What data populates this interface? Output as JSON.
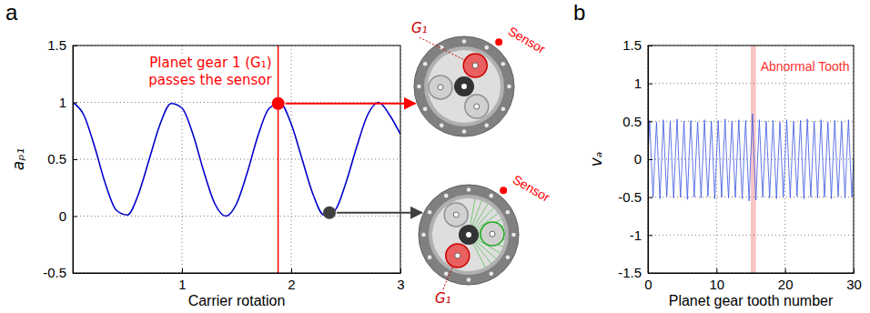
{
  "chart_data": [
    {
      "type": "line",
      "panel_label": "a",
      "xlabel": "Carrier rotation",
      "ylabel": "aₚ₁",
      "x": [
        0,
        0.1,
        0.2,
        0.3,
        0.4,
        0.5,
        0.6,
        0.7,
        0.8,
        0.9,
        1,
        1.1,
        1.2,
        1.3,
        1.4,
        1.5,
        1.6,
        1.7,
        1.8,
        1.9,
        2,
        2.1,
        2.2,
        2.3,
        2.4,
        2.5,
        2.6,
        2.7,
        2.8,
        2.9,
        3
      ],
      "values": [
        1,
        0.89,
        0.61,
        0.28,
        0.05,
        0.01,
        0.19,
        0.5,
        0.81,
        0.99,
        0.95,
        0.72,
        0.39,
        0.11,
        0,
        0.11,
        0.39,
        0.72,
        0.95,
        0.99,
        0.81,
        0.5,
        0.19,
        0.01,
        0.05,
        0.29,
        0.61,
        0.89,
        1,
        0.89,
        0.72
      ],
      "color": "#0000cc",
      "xlim": [
        0,
        3
      ],
      "xticks": [
        1,
        2,
        3
      ],
      "ylim": [
        -0.5,
        1.5
      ],
      "yticks": [
        -0.5,
        0,
        0.5,
        1,
        1.5
      ],
      "grid": true,
      "marker_line": {
        "x": 1.88,
        "color": "#ff0000"
      },
      "points": [
        {
          "x": 1.88,
          "y": 0.99,
          "color": "#ff0000"
        },
        {
          "x": 2.35,
          "y": 0.03,
          "color": "#404040"
        }
      ],
      "annotation": {
        "lines": [
          "Planet gear 1 (G₁)",
          "passes the sensor"
        ],
        "color": "#ff0000"
      },
      "diagrams": [
        {
          "sensor": "Sensor",
          "gear": "G₁"
        },
        {
          "sensor": "Sensor",
          "gear": "G₁"
        }
      ]
    },
    {
      "type": "line",
      "panel_label": "b",
      "xlabel": "Planet gear tooth number",
      "ylabel": "vₐ",
      "x": [
        0,
        0.25,
        0.5,
        0.75,
        1,
        1.25,
        1.5,
        1.75,
        2,
        2.25,
        2.5,
        2.75,
        3,
        3.25,
        3.5,
        3.75,
        4,
        4.25,
        4.5,
        4.75,
        5,
        5.25,
        5.5,
        5.75,
        6,
        6.25,
        6.5,
        6.75,
        7,
        7.25,
        7.5,
        7.75,
        8,
        8.25,
        8.5,
        8.75,
        9,
        9.25,
        9.5,
        9.75,
        10,
        10.25,
        10.5,
        10.75,
        11,
        11.25,
        11.5,
        11.75,
        12,
        12.25,
        12.5,
        12.75,
        13,
        13.25,
        13.5,
        13.75,
        14,
        14.25,
        14.5,
        14.75,
        15,
        15.25,
        15.5,
        15.75,
        16,
        16.25,
        16.5,
        16.75,
        17,
        17.25,
        17.5,
        17.75,
        18,
        18.25,
        18.5,
        18.75,
        19,
        19.25,
        19.5,
        19.75,
        20,
        20.25,
        20.5,
        20.75,
        21,
        21.25,
        21.5,
        21.75,
        22,
        22.25,
        22.5,
        22.75,
        23,
        23.25,
        23.5,
        23.75,
        24,
        24.25,
        24.5,
        24.75,
        25,
        25.25,
        25.5,
        25.75,
        26,
        26.25,
        26.5,
        26.75,
        27,
        27.25,
        27.5,
        27.75,
        28,
        28.25,
        28.5,
        28.75,
        29,
        29.25,
        29.5,
        29.75,
        30
      ],
      "values": [
        0.02,
        0.51,
        -0.04,
        -0.5,
        0.03,
        0.49,
        -0.02,
        -0.52,
        0.01,
        0.52,
        -0.03,
        -0.49,
        0.04,
        0.5,
        -0.05,
        -0.51,
        0.02,
        0.53,
        -0.02,
        -0.5,
        0,
        0.5,
        -0.04,
        -0.53,
        0.03,
        0.51,
        -0.01,
        -0.5,
        0.02,
        0.49,
        -0.03,
        -0.51,
        0.01,
        0.52,
        -0.04,
        -0.49,
        0.03,
        0.5,
        -0.02,
        -0.52,
        0.02,
        0.51,
        -0.03,
        -0.5,
        0.04,
        0.53,
        -0.05,
        -0.51,
        0.01,
        0.5,
        -0.02,
        -0.5,
        0.03,
        0.52,
        -0.04,
        -0.52,
        0.02,
        0.51,
        -0.03,
        -0.55,
        0.05,
        0.6,
        -0.06,
        -0.54,
        0.02,
        0.52,
        -0.03,
        -0.5,
        0.03,
        0.5,
        -0.02,
        -0.51,
        0.02,
        0.51,
        -0.03,
        -0.52,
        0.01,
        0.49,
        -0.04,
        -0.5,
        0.03,
        0.52,
        -0.02,
        -0.51,
        0.02,
        0.5,
        -0.03,
        -0.49,
        0.04,
        0.51,
        -0.05,
        -0.52,
        0.01,
        0.53,
        -0.02,
        -0.5,
        0.03,
        0.5,
        -0.04,
        -0.51,
        0.02,
        0.52,
        -0.03,
        -0.5,
        0.01,
        0.49,
        -0.02,
        -0.52,
        0.03,
        0.51,
        -0.04,
        -0.49,
        0.02,
        0.5,
        -0.03,
        -0.51,
        0.04,
        0.52,
        -0.02,
        -0.5,
        0.02
      ],
      "color": "#3a55e0",
      "xlim": [
        0,
        30
      ],
      "xticks": [
        0,
        10,
        20,
        30
      ],
      "ylim": [
        -1.5,
        1.5
      ],
      "yticks": [
        -1.5,
        -1,
        -0.5,
        0,
        0.5,
        1,
        1.5
      ],
      "grid": true,
      "highlight": {
        "x0": 15,
        "x1": 15.75,
        "label": "Abnormal Tooth",
        "color": "#f5b5b5",
        "label_color": "#ff3030"
      }
    }
  ]
}
